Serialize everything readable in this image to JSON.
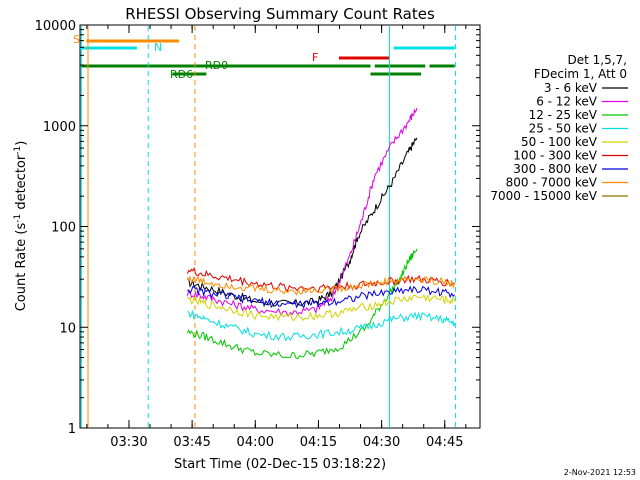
{
  "chart_data": {
    "type": "line",
    "title": "RHESSI Observing Summary Count Rates",
    "xlabel": "Start Time (02-Dec-15 03:18:22)",
    "ylabel_main": "Count Rate (s",
    "ylabel_sup1": "-1",
    "ylabel_mid": " detector",
    "ylabel_sup2": "-1",
    "ylabel_end": ")",
    "y_scale": "log",
    "xlim_minutes": [
      0,
      95
    ],
    "ylim": [
      1,
      10000
    ],
    "x_ticks": [
      {
        "label": "03:30",
        "minutes": 11.63
      },
      {
        "label": "03:45",
        "minutes": 26.63
      },
      {
        "label": "04:00",
        "minutes": 41.63
      },
      {
        "label": "04:15",
        "minutes": 56.63
      },
      {
        "label": "04:30",
        "minutes": 71.63
      },
      {
        "label": "04:45",
        "minutes": 86.63
      }
    ],
    "y_ticks": [
      {
        "label": "1",
        "value": 1
      },
      {
        "label": "10",
        "value": 10
      },
      {
        "label": "100",
        "value": 100
      },
      {
        "label": "1000",
        "value": 1000
      },
      {
        "label": "10000",
        "value": 10000
      }
    ],
    "legend": {
      "header": [
        "Det 1,5,7,",
        "FDecim 1, Att 0"
      ],
      "placement": "right"
    },
    "series": [
      {
        "name": "3 - 6 keV",
        "color": "#000000",
        "x": [
          25.5,
          30,
          36,
          42,
          50,
          56,
          60,
          64,
          66,
          70,
          74,
          78,
          80
        ],
        "y": [
          28,
          25,
          21,
          18,
          17,
          18,
          22,
          45,
          80,
          150,
          270,
          550,
          760
        ]
      },
      {
        "name": "6 - 12 keV",
        "color": "#e000e0",
        "x": [
          25.5,
          30,
          36,
          42,
          50,
          56,
          60,
          64,
          67,
          70,
          74,
          78,
          80
        ],
        "y": [
          22,
          20,
          17,
          15,
          14,
          15,
          20,
          50,
          120,
          320,
          650,
          1100,
          1500
        ]
      },
      {
        "name": "12 - 25 keV",
        "color": "#00c800",
        "x": [
          25.5,
          30,
          36,
          42,
          50,
          56,
          62,
          68,
          72,
          76,
          78,
          80
        ],
        "y": [
          9,
          8,
          6.5,
          5.5,
          5.2,
          5.5,
          6.5,
          10,
          18,
          30,
          45,
          60
        ]
      },
      {
        "name": "25 - 50 keV",
        "color": "#00e0e0",
        "x": [
          25.5,
          30,
          36,
          42,
          50,
          56,
          62,
          68,
          74,
          80,
          86,
          89
        ],
        "y": [
          14,
          12,
          10,
          8.5,
          8,
          8.5,
          9,
          10,
          12,
          13,
          12,
          11
        ]
      },
      {
        "name": "50 - 100 keV",
        "color": "#d2d200",
        "x": [
          25.5,
          30,
          36,
          42,
          50,
          56,
          62,
          68,
          74,
          80,
          86,
          89
        ],
        "y": [
          19,
          17,
          15,
          13,
          12.5,
          13,
          14,
          16,
          18,
          20,
          19,
          18
        ]
      },
      {
        "name": "100 - 300 keV",
        "color": "#e00000",
        "x": [
          25.5,
          30,
          36,
          42,
          48,
          54,
          60,
          66,
          72,
          78,
          84,
          89
        ],
        "y": [
          37,
          33,
          30,
          27,
          25,
          24.5,
          25,
          26,
          28,
          30,
          29,
          27
        ]
      },
      {
        "name": "300 - 800 keV",
        "color": "#0000e0",
        "x": [
          25.5,
          30,
          36,
          42,
          48,
          54,
          60,
          66,
          72,
          78,
          84,
          89
        ],
        "y": [
          24,
          22,
          20,
          18,
          17,
          17,
          18,
          20,
          22,
          24,
          23,
          21
        ]
      },
      {
        "name": "800 - 7000 keV",
        "color": "#ff8c00",
        "x": [
          25.5,
          30,
          36,
          42,
          48,
          54,
          60,
          66,
          72,
          78,
          84,
          89
        ],
        "y": [
          31,
          28,
          26,
          24,
          23,
          23,
          24,
          26,
          28,
          30,
          29,
          27
        ]
      },
      {
        "name": "7000 - 15000 keV",
        "color": "#8b7500",
        "x": [],
        "y": []
      }
    ],
    "annotations": {
      "S_label": "S",
      "N_label": "N",
      "F_label": "F",
      "RD0_label": "RD0",
      "RD6_label": "RD6"
    },
    "timestamp": "2-Nov-2021 12:53"
  }
}
